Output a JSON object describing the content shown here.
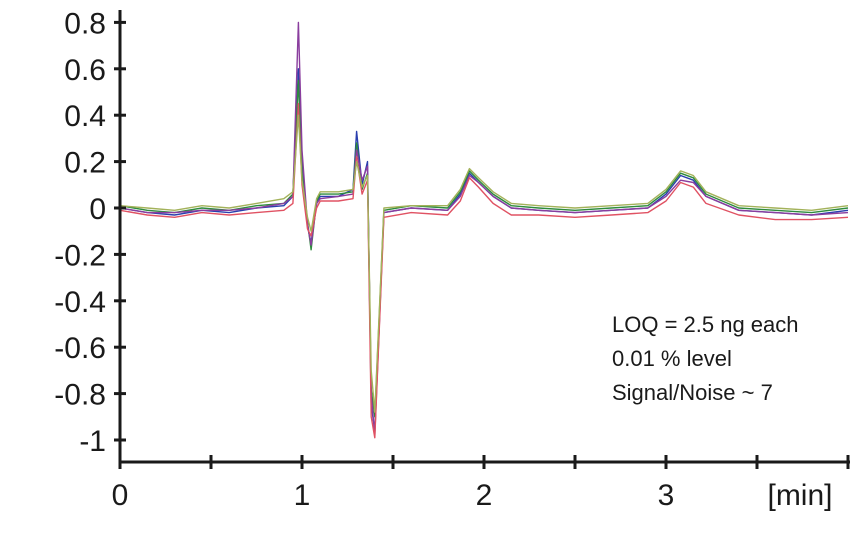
{
  "chart_data": {
    "type": "line",
    "title": "",
    "xlabel": "[min]",
    "ylabel": "",
    "xlim": [
      0,
      4
    ],
    "ylim": [
      -1.1,
      0.85
    ],
    "grid": false,
    "legend": "none",
    "x_ticks": [
      {
        "value": 0,
        "label": "0"
      },
      {
        "value": 1,
        "label": "1"
      },
      {
        "value": 2,
        "label": "2"
      },
      {
        "value": 3,
        "label": "3"
      }
    ],
    "y_ticks": [
      {
        "value": 0.8,
        "label": "0.8"
      },
      {
        "value": 0.6,
        "label": "0.6"
      },
      {
        "value": 0.4,
        "label": "0.4"
      },
      {
        "value": 0.2,
        "label": "0.2"
      },
      {
        "value": 0,
        "label": "0"
      },
      {
        "value": -0.2,
        "label": "-0.2"
      },
      {
        "value": -0.4,
        "label": "-0.4"
      },
      {
        "value": -0.6,
        "label": "-0.6"
      },
      {
        "value": -0.8,
        "label": "-0.8"
      },
      {
        "value": -1,
        "label": "-1"
      }
    ],
    "annotations": [
      "LOQ = 2.5 ng each",
      "0.01 % level",
      "Signal/Noise ~ 7"
    ],
    "series": [
      {
        "color": "#2a3fae",
        "x": [
          0,
          0.15,
          0.3,
          0.45,
          0.6,
          0.75,
          0.9,
          0.95,
          0.98,
          1.0,
          1.03,
          1.05,
          1.08,
          1.1,
          1.2,
          1.28,
          1.3,
          1.33,
          1.36,
          1.38,
          1.4,
          1.45,
          1.6,
          1.8,
          1.87,
          1.92,
          1.97,
          2.05,
          2.15,
          2.3,
          2.5,
          2.7,
          2.9,
          3.0,
          3.08,
          3.15,
          3.22,
          3.4,
          3.6,
          3.8,
          4.0
        ],
        "y": [
          0.0,
          -0.02,
          -0.03,
          -0.01,
          -0.02,
          0.0,
          0.01,
          0.05,
          0.6,
          0.2,
          -0.08,
          -0.15,
          0.02,
          0.05,
          0.05,
          0.08,
          0.33,
          0.1,
          0.2,
          -0.85,
          -0.96,
          -0.02,
          0.0,
          -0.01,
          0.06,
          0.15,
          0.11,
          0.05,
          0.0,
          -0.01,
          -0.02,
          -0.01,
          0.0,
          0.06,
          0.14,
          0.12,
          0.05,
          -0.01,
          -0.02,
          -0.03,
          -0.01
        ]
      },
      {
        "color": "#2e8b3d",
        "x": [
          0,
          0.15,
          0.3,
          0.45,
          0.6,
          0.75,
          0.9,
          0.95,
          0.98,
          1.0,
          1.03,
          1.05,
          1.08,
          1.1,
          1.2,
          1.28,
          1.3,
          1.33,
          1.36,
          1.38,
          1.4,
          1.45,
          1.6,
          1.8,
          1.87,
          1.92,
          1.97,
          2.05,
          2.15,
          2.3,
          2.5,
          2.7,
          2.9,
          3.0,
          3.08,
          3.15,
          3.22,
          3.4,
          3.6,
          3.8,
          4.0
        ],
        "y": [
          0.01,
          -0.01,
          -0.02,
          0.0,
          -0.01,
          0.01,
          0.02,
          0.06,
          0.55,
          0.15,
          -0.06,
          -0.18,
          0.03,
          0.06,
          0.06,
          0.07,
          0.28,
          0.08,
          0.15,
          -0.78,
          -0.9,
          -0.01,
          0.01,
          0.0,
          0.07,
          0.16,
          0.12,
          0.06,
          0.01,
          0.0,
          -0.01,
          0.0,
          0.01,
          0.07,
          0.15,
          0.13,
          0.06,
          0.0,
          -0.01,
          -0.02,
          0.0
        ]
      },
      {
        "color": "#8a3e9e",
        "x": [
          0,
          0.15,
          0.3,
          0.45,
          0.6,
          0.75,
          0.9,
          0.95,
          0.98,
          1.0,
          1.03,
          1.05,
          1.08,
          1.1,
          1.2,
          1.28,
          1.3,
          1.33,
          1.36,
          1.38,
          1.4,
          1.45,
          1.6,
          1.8,
          1.87,
          1.92,
          1.97,
          2.05,
          2.15,
          2.3,
          2.5,
          2.7,
          2.9,
          3.0,
          3.08,
          3.15,
          3.22,
          3.4,
          3.6,
          3.8,
          4.0
        ],
        "y": [
          0.0,
          -0.02,
          -0.02,
          -0.01,
          -0.01,
          0.0,
          0.02,
          0.05,
          0.8,
          0.25,
          -0.07,
          -0.16,
          0.02,
          0.04,
          0.05,
          0.06,
          0.25,
          0.12,
          0.18,
          -0.8,
          -0.98,
          -0.02,
          0.0,
          -0.01,
          0.05,
          0.14,
          0.11,
          0.05,
          0.0,
          -0.01,
          -0.02,
          -0.01,
          0.0,
          0.05,
          0.12,
          0.11,
          0.05,
          -0.01,
          -0.02,
          -0.03,
          -0.02
        ]
      },
      {
        "color": "#e05263",
        "x": [
          0,
          0.15,
          0.3,
          0.45,
          0.6,
          0.75,
          0.9,
          0.95,
          0.98,
          1.0,
          1.03,
          1.05,
          1.08,
          1.1,
          1.2,
          1.28,
          1.3,
          1.33,
          1.36,
          1.38,
          1.4,
          1.45,
          1.6,
          1.8,
          1.87,
          1.92,
          1.97,
          2.05,
          2.15,
          2.3,
          2.5,
          2.7,
          2.9,
          3.0,
          3.08,
          3.15,
          3.22,
          3.4,
          3.6,
          3.8,
          4.0
        ],
        "y": [
          -0.01,
          -0.03,
          -0.04,
          -0.02,
          -0.03,
          -0.02,
          -0.01,
          0.02,
          0.45,
          0.1,
          -0.09,
          -0.12,
          0.0,
          0.03,
          0.03,
          0.04,
          0.22,
          0.06,
          0.12,
          -0.9,
          -0.99,
          -0.04,
          -0.02,
          -0.03,
          0.03,
          0.13,
          0.09,
          0.02,
          -0.03,
          -0.03,
          -0.04,
          -0.03,
          -0.02,
          0.03,
          0.11,
          0.09,
          0.02,
          -0.03,
          -0.05,
          -0.05,
          -0.04
        ]
      },
      {
        "color": "#a3b25a",
        "x": [
          0,
          0.15,
          0.3,
          0.45,
          0.6,
          0.75,
          0.9,
          0.95,
          0.98,
          1.0,
          1.03,
          1.05,
          1.08,
          1.1,
          1.2,
          1.28,
          1.3,
          1.33,
          1.36,
          1.38,
          1.4,
          1.45,
          1.6,
          1.8,
          1.87,
          1.92,
          1.97,
          2.05,
          2.15,
          2.3,
          2.5,
          2.7,
          2.9,
          3.0,
          3.08,
          3.15,
          3.22,
          3.4,
          3.6,
          3.8,
          4.0
        ],
        "y": [
          0.01,
          0.0,
          -0.01,
          0.01,
          0.0,
          0.02,
          0.04,
          0.07,
          0.4,
          0.12,
          -0.04,
          -0.1,
          0.04,
          0.07,
          0.07,
          0.08,
          0.2,
          0.09,
          0.14,
          -0.7,
          -0.88,
          0.0,
          0.01,
          0.01,
          0.08,
          0.17,
          0.13,
          0.07,
          0.02,
          0.01,
          0.0,
          0.01,
          0.02,
          0.08,
          0.16,
          0.14,
          0.07,
          0.01,
          0.0,
          -0.01,
          0.01
        ]
      }
    ]
  }
}
